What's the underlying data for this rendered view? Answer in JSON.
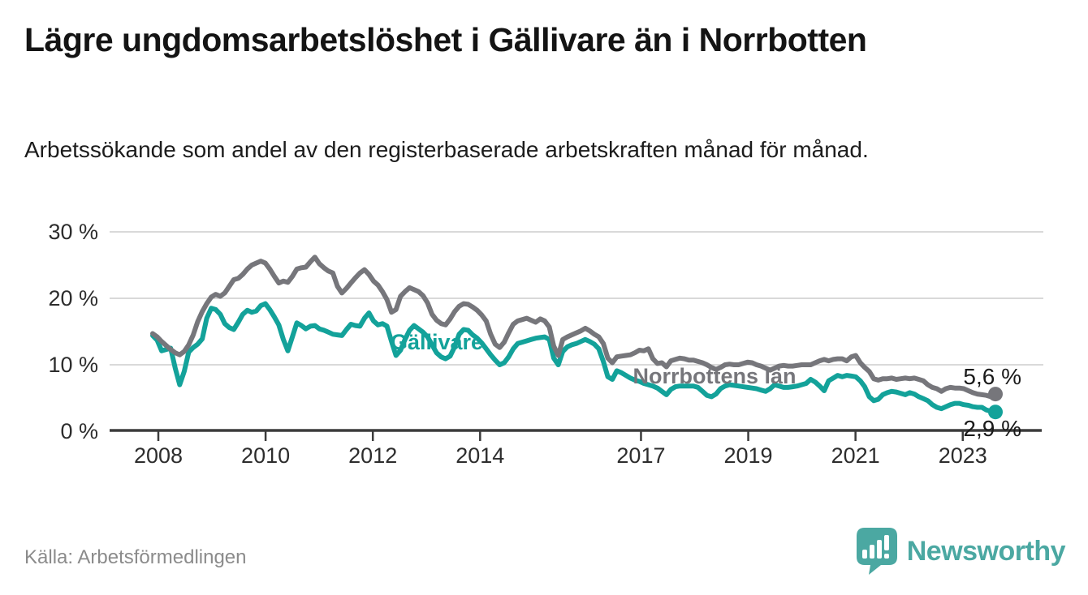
{
  "header": {
    "title": "Lägre ungdomsarbetslöshet i Gällivare än i Norrbotten",
    "subtitle": "Arbetssökande som andel av den registerbaserade arbetskraften månad för månad."
  },
  "footer": {
    "source": "Källa: Arbetsförmedlingen",
    "brand": "Newsworthy",
    "logo_icon": "bar-chart-speech-bubble-icon"
  },
  "colors": {
    "gallivare": "#13a29a",
    "norrbotten": "#76767b",
    "grid": "#d9d9d9",
    "axis": "#3c3c3c",
    "tick_text": "#2d2d2d",
    "value_label_text": "#1a1a1a",
    "brand_teal": "#4ba8a2"
  },
  "chart_data": {
    "type": "line",
    "unit": "%",
    "x_start": "2008-01",
    "x_end": "2023-08",
    "frequency": "monthly",
    "ylim": [
      0,
      30
    ],
    "grid": true,
    "y_ticks": [
      {
        "value": 30,
        "label": "30 %"
      },
      {
        "value": 20,
        "label": "20 %"
      },
      {
        "value": 10,
        "label": "10 %"
      },
      {
        "value": 0,
        "label": "0 %"
      }
    ],
    "x_ticks": [
      {
        "year": 2008,
        "label": "2008"
      },
      {
        "year": 2010,
        "label": "2010"
      },
      {
        "year": 2012,
        "label": "2012"
      },
      {
        "year": 2014,
        "label": "2014"
      },
      {
        "year": 2017,
        "label": "2017"
      },
      {
        "year": 2019,
        "label": "2019"
      },
      {
        "year": 2021,
        "label": "2021"
      },
      {
        "year": 2023,
        "label": "2023"
      }
    ],
    "series": [
      {
        "name": "Gällivare",
        "color": "#13a29a",
        "end_label": "2,9 %",
        "end_value": 2.9,
        "values": [
          14.4,
          13.7,
          12.1,
          12.3,
          12.5,
          9.5,
          7.0,
          9.0,
          11.9,
          12.6,
          13.1,
          13.9,
          17.0,
          18.5,
          18.3,
          17.6,
          16.2,
          15.6,
          15.3,
          16.4,
          17.6,
          18.2,
          17.9,
          18.1,
          18.9,
          19.2,
          18.3,
          17.2,
          16.0,
          13.8,
          12.1,
          14.2,
          16.3,
          15.9,
          15.4,
          15.8,
          15.9,
          15.4,
          15.2,
          14.9,
          14.6,
          14.5,
          14.4,
          15.3,
          16.1,
          15.9,
          15.8,
          17.0,
          17.8,
          16.6,
          16.0,
          16.2,
          15.8,
          13.5,
          11.4,
          12.2,
          13.8,
          15.2,
          15.9,
          15.4,
          14.9,
          14.2,
          13.0,
          11.8,
          11.2,
          10.9,
          11.3,
          12.7,
          14.6,
          15.3,
          15.2,
          14.5,
          14.0,
          13.3,
          12.4,
          11.5,
          10.7,
          10.0,
          10.3,
          11.2,
          12.4,
          13.2,
          13.4,
          13.6,
          13.8,
          14.0,
          14.1,
          14.2,
          13.8,
          11.0,
          10.0,
          12.0,
          12.7,
          13.0,
          13.2,
          13.5,
          13.8,
          13.5,
          13.1,
          12.4,
          10.5,
          8.2,
          7.8,
          9.1,
          8.8,
          8.4,
          8.0,
          7.7,
          7.5,
          7.2,
          7.0,
          6.8,
          6.5,
          6.0,
          5.5,
          6.3,
          6.7,
          6.8,
          6.8,
          6.8,
          6.8,
          6.6,
          6.0,
          5.4,
          5.2,
          5.6,
          6.4,
          6.8,
          7.0,
          6.9,
          6.8,
          6.7,
          6.6,
          6.5,
          6.4,
          6.2,
          6.0,
          6.4,
          7.0,
          6.8,
          6.6,
          6.6,
          6.7,
          6.8,
          7.0,
          7.2,
          7.8,
          7.4,
          6.8,
          6.1,
          7.6,
          8.0,
          8.4,
          8.2,
          8.4,
          8.3,
          8.2,
          7.6,
          6.7,
          5.2,
          4.6,
          4.8,
          5.5,
          5.8,
          6.0,
          5.9,
          5.7,
          5.5,
          5.8,
          5.6,
          5.2,
          4.9,
          4.6,
          4.0,
          3.6,
          3.4,
          3.7,
          4.0,
          4.2,
          4.2,
          4.0,
          3.9,
          3.7,
          3.6,
          3.6,
          3.2,
          3.0,
          2.9
        ]
      },
      {
        "name": "Norrbottens län",
        "color": "#76767b",
        "end_label": "5,6 %",
        "end_value": 5.6,
        "values": [
          14.7,
          14.2,
          13.5,
          12.9,
          12.3,
          11.8,
          11.5,
          12.0,
          13.0,
          14.5,
          16.5,
          18.0,
          19.2,
          20.2,
          20.6,
          20.3,
          20.8,
          21.8,
          22.8,
          23.0,
          23.6,
          24.4,
          25.0,
          25.3,
          25.6,
          25.3,
          24.4,
          23.3,
          22.3,
          22.6,
          22.4,
          23.3,
          24.4,
          24.6,
          24.7,
          25.5,
          26.2,
          25.2,
          24.6,
          24.1,
          23.8,
          21.8,
          20.8,
          21.5,
          22.3,
          23.1,
          23.8,
          24.3,
          23.6,
          22.6,
          22.0,
          21.0,
          19.8,
          17.9,
          18.3,
          20.3,
          21.0,
          21.6,
          21.3,
          21.0,
          20.4,
          19.3,
          17.6,
          16.7,
          16.2,
          16.0,
          16.9,
          18.0,
          18.8,
          19.2,
          19.1,
          18.7,
          18.2,
          17.5,
          16.6,
          14.6,
          13.1,
          12.6,
          13.4,
          14.8,
          16.1,
          16.6,
          16.8,
          17.0,
          16.7,
          16.4,
          16.9,
          16.6,
          15.7,
          12.8,
          11.4,
          13.8,
          14.2,
          14.5,
          14.8,
          15.1,
          15.5,
          15.1,
          14.6,
          14.2,
          13.2,
          11.0,
          10.3,
          11.2,
          11.3,
          11.4,
          11.5,
          11.8,
          12.2,
          12.1,
          12.4,
          10.9,
          10.2,
          10.3,
          9.7,
          10.6,
          10.8,
          11.0,
          10.9,
          10.7,
          10.7,
          10.5,
          10.3,
          10.0,
          9.6,
          9.3,
          9.6,
          10.0,
          10.1,
          10.0,
          10.0,
          10.2,
          10.4,
          10.3,
          10.0,
          9.8,
          9.5,
          9.2,
          9.5,
          9.8,
          9.9,
          9.8,
          9.8,
          9.9,
          10.0,
          10.0,
          10.0,
          10.3,
          10.6,
          10.8,
          10.6,
          10.8,
          10.9,
          10.9,
          10.6,
          11.2,
          11.4,
          10.3,
          9.6,
          9.0,
          7.9,
          7.7,
          7.9,
          7.9,
          8.0,
          7.8,
          7.9,
          8.0,
          7.9,
          8.0,
          7.8,
          7.6,
          7.0,
          6.6,
          6.4,
          6.0,
          6.4,
          6.6,
          6.5,
          6.5,
          6.4,
          6.1,
          5.8,
          5.6,
          5.5,
          5.4,
          5.2,
          5.6
        ]
      }
    ]
  }
}
